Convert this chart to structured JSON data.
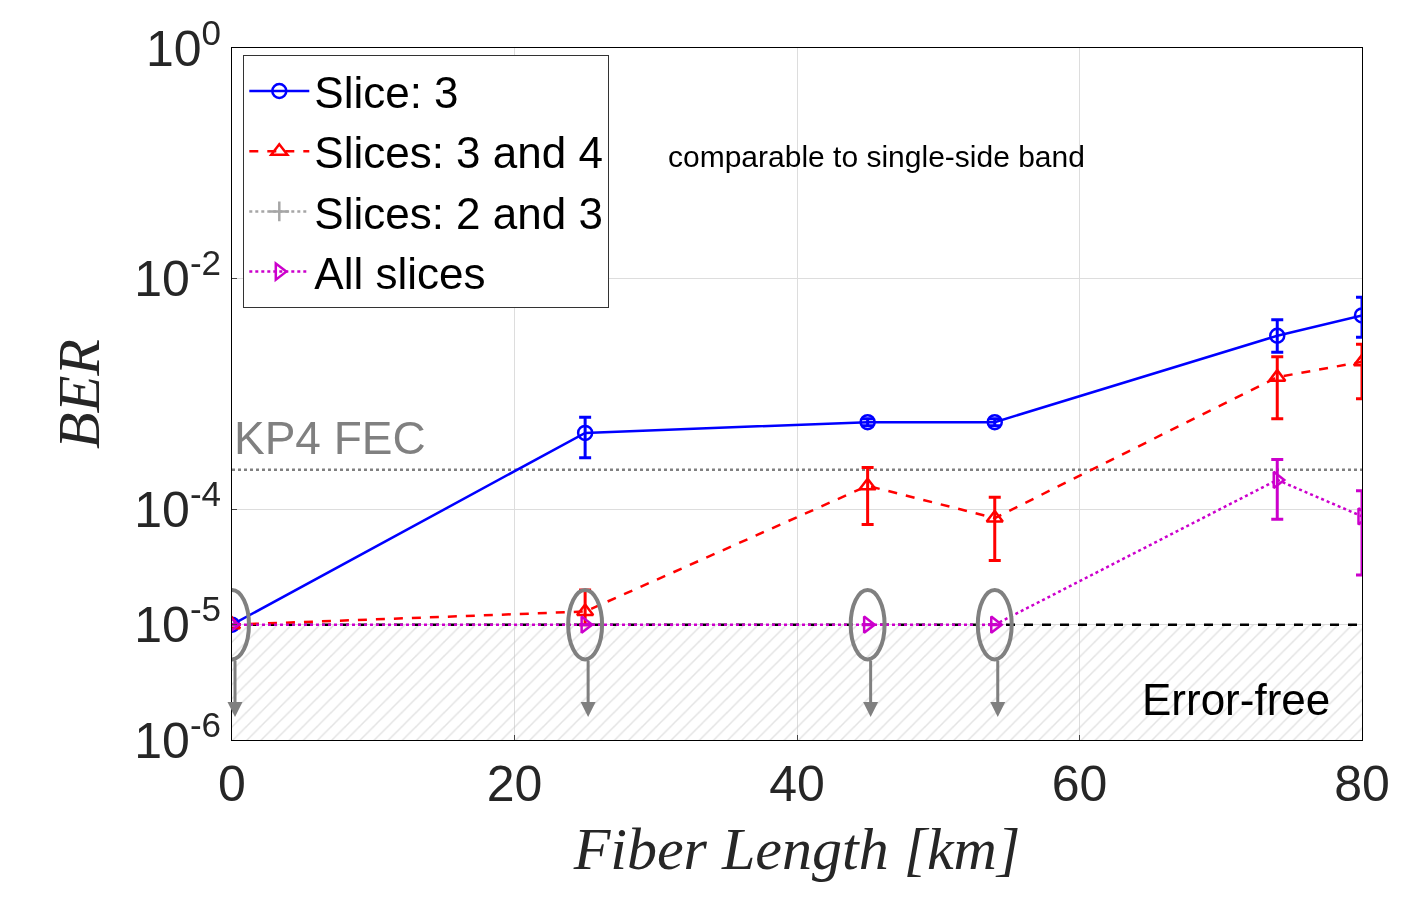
{
  "chart_data": {
    "type": "line",
    "xlabel": "Fiber Length [km]",
    "ylabel": "BER",
    "x": [
      0,
      25,
      45,
      54,
      74,
      80
    ],
    "series": [
      {
        "name": "Slice: 3",
        "color": "#0000ff",
        "marker": "circle",
        "line_style": "solid",
        "values": [
          1e-05,
          0.00046,
          0.00057,
          0.00057,
          0.0032,
          0.0048
        ],
        "errors": [
          null,
          [
            0.00028,
            0.00063
          ],
          [
            0.00053,
            0.00061
          ],
          [
            0.00053,
            0.00061
          ],
          [
            0.0023,
            0.0044
          ],
          [
            0.0031,
            0.0069
          ]
        ]
      },
      {
        "name": "Slices: 3 and 4",
        "color": "#ff0000",
        "marker": "triangle",
        "line_style": "dashed",
        "values": [
          1e-05,
          1.3e-05,
          0.00016,
          8.4e-05,
          0.0014,
          0.0019
        ],
        "errors": [
          null,
          [
            1e-05,
            2e-05
          ],
          [
            7.4e-05,
            0.00023
          ],
          [
            3.6e-05,
            0.000127
          ],
          [
            0.00061,
            0.0021
          ],
          [
            0.00091,
            0.0027
          ]
        ]
      },
      {
        "name": "Slices: 2 and 3",
        "color": "#a6a6a6",
        "marker": "cross",
        "line_style": "dotted",
        "values": [
          null,
          null,
          null,
          null,
          null,
          null
        ]
      },
      {
        "name": "All slices",
        "color": "#cc00cc",
        "marker": "triangle-right",
        "line_style": "dotted",
        "values": [
          1e-05,
          1e-05,
          1e-05,
          1e-05,
          0.00018,
          8.7e-05
        ],
        "errors": [
          null,
          null,
          null,
          null,
          [
            8.2e-05,
            0.00027
          ],
          [
            2.7e-05,
            0.000145
          ]
        ]
      }
    ],
    "log": "y",
    "xlim": [
      0,
      80
    ],
    "xticks": [
      0,
      20,
      40,
      60,
      80
    ],
    "ylim": [
      1e-06,
      1
    ],
    "yticks": [
      {
        "value": 1,
        "label": "10$^{0}$"
      },
      {
        "value": 0.01,
        "label": "10$^{-2}$"
      },
      {
        "value": 0.0001,
        "label": "10$^{-4}$"
      },
      {
        "value": 1e-05,
        "label": "10$^{-5}$"
      },
      {
        "value": 1e-06,
        "label": "10$^{-6}$"
      }
    ],
    "ref_lines": [
      {
        "axis": "y",
        "value": 0.00022,
        "label": "KP4 FEC",
        "color": "#808080",
        "line_style": "dotted"
      },
      {
        "axis": "y",
        "value": 1e-05,
        "color": "#000000",
        "line_style": "dashed"
      }
    ],
    "bands": [
      {
        "axis": "y",
        "from": 1e-06,
        "to": 1e-05,
        "label": "Error-free",
        "color": "#c8c8c8"
      }
    ],
    "annotations": [
      "comparable to single-side band"
    ],
    "grid": true,
    "legend": "top left"
  }
}
